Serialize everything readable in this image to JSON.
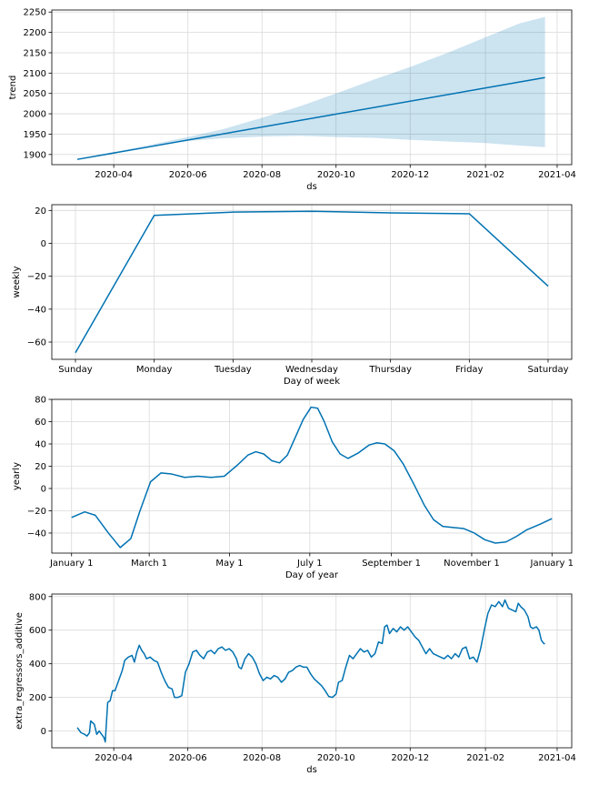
{
  "colors": {
    "line": "#0072B2",
    "band": "#0072B2",
    "grid": "#d9d9d9",
    "axis": "#000000"
  },
  "chart_data": [
    {
      "type": "line",
      "ylabel": "trend",
      "xlabel": "ds",
      "x_axis": "date",
      "xlim": [
        "2020-02-10",
        "2021-04-13"
      ],
      "ylim": [
        1875,
        2255
      ],
      "yticks": [
        1900,
        1950,
        2000,
        2050,
        2100,
        2150,
        2200,
        2250
      ],
      "xticks": [
        "2020-04",
        "2020-06",
        "2020-08",
        "2020-10",
        "2020-12",
        "2021-02",
        "2021-04"
      ],
      "grid": true,
      "series": [
        {
          "points": [
            [
              "2020-03-02",
              1888
            ],
            [
              "2021-03-22",
              2089
            ]
          ]
        }
      ],
      "uncertainty": {
        "upper": [
          [
            "2020-03-02",
            1888
          ],
          [
            "2020-05-01",
            1924
          ],
          [
            "2020-06-01",
            1943
          ],
          [
            "2020-07-01",
            1963
          ],
          [
            "2020-08-01",
            1990
          ],
          [
            "2020-09-01",
            2018
          ],
          [
            "2020-10-01",
            2050
          ],
          [
            "2020-11-01",
            2084
          ],
          [
            "2020-12-01",
            2115
          ],
          [
            "2021-01-01",
            2150
          ],
          [
            "2021-02-01",
            2188
          ],
          [
            "2021-03-01",
            2222
          ],
          [
            "2021-03-22",
            2238
          ]
        ],
        "lower": [
          [
            "2020-03-02",
            1888
          ],
          [
            "2020-05-01",
            1922
          ],
          [
            "2020-06-01",
            1933
          ],
          [
            "2020-07-01",
            1940
          ],
          [
            "2020-08-01",
            1944
          ],
          [
            "2020-09-01",
            1946
          ],
          [
            "2020-10-01",
            1943
          ],
          [
            "2020-11-01",
            1941
          ],
          [
            "2020-12-01",
            1936
          ],
          [
            "2021-01-01",
            1932
          ],
          [
            "2021-02-01",
            1928
          ],
          [
            "2021-03-01",
            1922
          ],
          [
            "2021-03-22",
            1918
          ]
        ]
      }
    },
    {
      "type": "line",
      "ylabel": "weekly",
      "xlabel": "Day of week",
      "x_axis": "category",
      "categories": [
        "Sunday",
        "Monday",
        "Tuesday",
        "Wednesday",
        "Thursday",
        "Friday",
        "Saturday"
      ],
      "ylim": [
        -70.5,
        23.5
      ],
      "yticks": [
        -60,
        -40,
        -20,
        0,
        20
      ],
      "grid": true,
      "series": [
        {
          "values": [
            -66.5,
            17,
            19,
            19.5,
            18.5,
            18,
            -26
          ]
        }
      ]
    },
    {
      "type": "line",
      "ylabel": "yearly",
      "xlabel": "Day of year",
      "x_axis": "doy",
      "xlim": [
        -15,
        380
      ],
      "ylim": [
        -58,
        80
      ],
      "yticks": [
        -40,
        -20,
        0,
        20,
        40,
        60,
        80
      ],
      "xticks": [
        {
          "label": "January 1",
          "x": 0
        },
        {
          "label": "March 1",
          "x": 59
        },
        {
          "label": "May 1",
          "x": 120
        },
        {
          "label": "July 1",
          "x": 181
        },
        {
          "label": "September 1",
          "x": 243
        },
        {
          "label": "November 1",
          "x": 304
        },
        {
          "label": "January 1",
          "x": 365
        }
      ],
      "grid": true,
      "series": [
        {
          "points": [
            [
              0,
              -26
            ],
            [
              10,
              -21
            ],
            [
              18,
              -24
            ],
            [
              28,
              -40
            ],
            [
              37,
              -53
            ],
            [
              45,
              -45
            ],
            [
              52,
              -20
            ],
            [
              60,
              6
            ],
            [
              68,
              14
            ],
            [
              76,
              13
            ],
            [
              86,
              10
            ],
            [
              96,
              11
            ],
            [
              106,
              10
            ],
            [
              116,
              11
            ],
            [
              126,
              21
            ],
            [
              134,
              30
            ],
            [
              140,
              33
            ],
            [
              146,
              31
            ],
            [
              152,
              25
            ],
            [
              158,
              23
            ],
            [
              164,
              30
            ],
            [
              170,
              46
            ],
            [
              176,
              62
            ],
            [
              182,
              73
            ],
            [
              187,
              72
            ],
            [
              192,
              60
            ],
            [
              198,
              42
            ],
            [
              204,
              31
            ],
            [
              210,
              27
            ],
            [
              218,
              32
            ],
            [
              226,
              39
            ],
            [
              232,
              41
            ],
            [
              238,
              40
            ],
            [
              245,
              34
            ],
            [
              252,
              22
            ],
            [
              260,
              4
            ],
            [
              268,
              -15
            ],
            [
              275,
              -28
            ],
            [
              282,
              -34
            ],
            [
              290,
              -35
            ],
            [
              298,
              -36
            ],
            [
              306,
              -40
            ],
            [
              314,
              -46
            ],
            [
              322,
              -49
            ],
            [
              330,
              -48
            ],
            [
              338,
              -43
            ],
            [
              346,
              -37
            ],
            [
              356,
              -32
            ],
            [
              365,
              -27
            ]
          ]
        }
      ]
    },
    {
      "type": "line",
      "ylabel": "extra_regressors_additive",
      "xlabel": "ds",
      "x_axis": "date",
      "xlim": [
        "2020-02-10",
        "2021-04-13"
      ],
      "ylim": [
        -100,
        815
      ],
      "yticks": [
        0,
        200,
        400,
        600,
        800
      ],
      "xticks": [
        "2020-04",
        "2020-06",
        "2020-08",
        "2020-10",
        "2020-12",
        "2021-02",
        "2021-04"
      ],
      "grid": true,
      "series": [
        {
          "points": [
            [
              "2020-03-02",
              20
            ],
            [
              "2020-03-05",
              -10
            ],
            [
              "2020-03-08",
              -20
            ],
            [
              "2020-03-10",
              -30
            ],
            [
              "2020-03-12",
              -10
            ],
            [
              "2020-03-13",
              60
            ],
            [
              "2020-03-16",
              40
            ],
            [
              "2020-03-18",
              -20
            ],
            [
              "2020-03-20",
              0
            ],
            [
              "2020-03-22",
              -20
            ],
            [
              "2020-03-24",
              -40
            ],
            [
              "2020-03-25",
              -65
            ],
            [
              "2020-03-27",
              170
            ],
            [
              "2020-03-29",
              180
            ],
            [
              "2020-03-31",
              240
            ],
            [
              "2020-04-02",
              240
            ],
            [
              "2020-04-05",
              300
            ],
            [
              "2020-04-08",
              360
            ],
            [
              "2020-04-10",
              420
            ],
            [
              "2020-04-13",
              440
            ],
            [
              "2020-04-16",
              450
            ],
            [
              "2020-04-18",
              410
            ],
            [
              "2020-04-20",
              470
            ],
            [
              "2020-04-22",
              510
            ],
            [
              "2020-04-24",
              480
            ],
            [
              "2020-04-26",
              460
            ],
            [
              "2020-04-28",
              430
            ],
            [
              "2020-05-01",
              440
            ],
            [
              "2020-05-04",
              420
            ],
            [
              "2020-05-07",
              410
            ],
            [
              "2020-05-10",
              350
            ],
            [
              "2020-05-13",
              300
            ],
            [
              "2020-05-16",
              260
            ],
            [
              "2020-05-19",
              250
            ],
            [
              "2020-05-21",
              200
            ],
            [
              "2020-05-24",
              200
            ],
            [
              "2020-05-27",
              210
            ],
            [
              "2020-05-30",
              350
            ],
            [
              "2020-06-02",
              400
            ],
            [
              "2020-06-05",
              470
            ],
            [
              "2020-06-08",
              480
            ],
            [
              "2020-06-11",
              450
            ],
            [
              "2020-06-14",
              430
            ],
            [
              "2020-06-17",
              470
            ],
            [
              "2020-06-20",
              480
            ],
            [
              "2020-06-23",
              460
            ],
            [
              "2020-06-26",
              490
            ],
            [
              "2020-06-29",
              500
            ],
            [
              "2020-07-02",
              480
            ],
            [
              "2020-07-05",
              490
            ],
            [
              "2020-07-08",
              470
            ],
            [
              "2020-07-11",
              430
            ],
            [
              "2020-07-13",
              380
            ],
            [
              "2020-07-15",
              370
            ],
            [
              "2020-07-18",
              430
            ],
            [
              "2020-07-21",
              460
            ],
            [
              "2020-07-24",
              440
            ],
            [
              "2020-07-27",
              400
            ],
            [
              "2020-07-30",
              340
            ],
            [
              "2020-08-02",
              300
            ],
            [
              "2020-08-05",
              320
            ],
            [
              "2020-08-08",
              310
            ],
            [
              "2020-08-11",
              330
            ],
            [
              "2020-08-14",
              320
            ],
            [
              "2020-08-17",
              290
            ],
            [
              "2020-08-20",
              310
            ],
            [
              "2020-08-23",
              350
            ],
            [
              "2020-08-26",
              360
            ],
            [
              "2020-08-29",
              380
            ],
            [
              "2020-09-01",
              390
            ],
            [
              "2020-09-04",
              380
            ],
            [
              "2020-09-07",
              380
            ],
            [
              "2020-09-10",
              340
            ],
            [
              "2020-09-13",
              310
            ],
            [
              "2020-09-16",
              290
            ],
            [
              "2020-09-19",
              270
            ],
            [
              "2020-09-22",
              240
            ],
            [
              "2020-09-25",
              205
            ],
            [
              "2020-09-28",
              200
            ],
            [
              "2020-10-01",
              220
            ],
            [
              "2020-10-03",
              290
            ],
            [
              "2020-10-06",
              300
            ],
            [
              "2020-10-09",
              380
            ],
            [
              "2020-10-12",
              450
            ],
            [
              "2020-10-15",
              430
            ],
            [
              "2020-10-18",
              460
            ],
            [
              "2020-10-21",
              490
            ],
            [
              "2020-10-24",
              470
            ],
            [
              "2020-10-27",
              480
            ],
            [
              "2020-10-30",
              440
            ],
            [
              "2020-11-02",
              460
            ],
            [
              "2020-11-05",
              530
            ],
            [
              "2020-11-08",
              520
            ],
            [
              "2020-11-10",
              620
            ],
            [
              "2020-11-12",
              630
            ],
            [
              "2020-11-14",
              580
            ],
            [
              "2020-11-17",
              610
            ],
            [
              "2020-11-20",
              590
            ],
            [
              "2020-11-23",
              620
            ],
            [
              "2020-11-26",
              600
            ],
            [
              "2020-11-29",
              620
            ],
            [
              "2020-12-02",
              590
            ],
            [
              "2020-12-05",
              560
            ],
            [
              "2020-12-08",
              540
            ],
            [
              "2020-12-11",
              500
            ],
            [
              "2020-12-14",
              460
            ],
            [
              "2020-12-17",
              490
            ],
            [
              "2020-12-20",
              460
            ],
            [
              "2020-12-23",
              450
            ],
            [
              "2020-12-26",
              440
            ],
            [
              "2020-12-29",
              430
            ],
            [
              "2021-01-01",
              450
            ],
            [
              "2021-01-04",
              430
            ],
            [
              "2021-01-07",
              460
            ],
            [
              "2021-01-10",
              440
            ],
            [
              "2021-01-13",
              490
            ],
            [
              "2021-01-16",
              500
            ],
            [
              "2021-01-19",
              430
            ],
            [
              "2021-01-22",
              440
            ],
            [
              "2021-01-25",
              410
            ],
            [
              "2021-01-28",
              490
            ],
            [
              "2021-01-31",
              600
            ],
            [
              "2021-02-03",
              700
            ],
            [
              "2021-02-06",
              750
            ],
            [
              "2021-02-09",
              740
            ],
            [
              "2021-02-12",
              770
            ],
            [
              "2021-02-15",
              740
            ],
            [
              "2021-02-17",
              780
            ],
            [
              "2021-02-20",
              730
            ],
            [
              "2021-02-23",
              720
            ],
            [
              "2021-02-26",
              710
            ],
            [
              "2021-02-28",
              760
            ],
            [
              "2021-03-02",
              740
            ],
            [
              "2021-03-05",
              720
            ],
            [
              "2021-03-08",
              680
            ],
            [
              "2021-03-10",
              620
            ],
            [
              "2021-03-12",
              610
            ],
            [
              "2021-03-15",
              620
            ],
            [
              "2021-03-17",
              600
            ],
            [
              "2021-03-19",
              540
            ],
            [
              "2021-03-21",
              520
            ],
            [
              "2021-03-22",
              520
            ]
          ]
        }
      ]
    }
  ]
}
